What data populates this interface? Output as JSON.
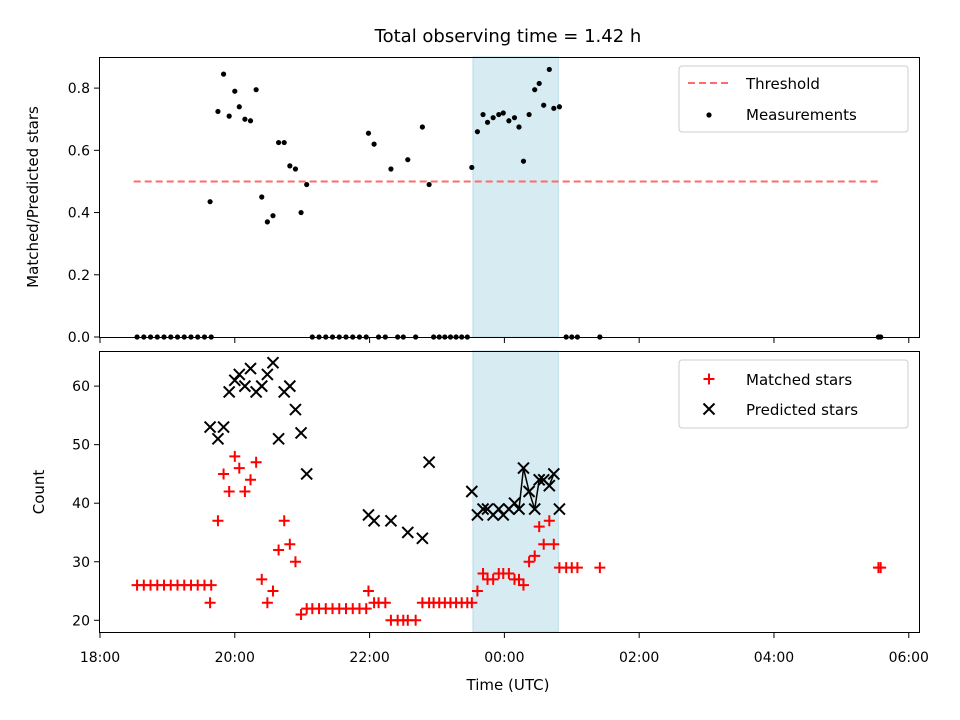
{
  "chart_data": {
    "title": "Total observing time = 1.42 h",
    "highlight_span": {
      "x": [
        "23:32",
        "00:48"
      ],
      "color": "#add8e6"
    },
    "panels": [
      {
        "type": "scatter",
        "ylabel": "Matched/Predicted stars",
        "xlabel": "",
        "xlim": [
          "18:00",
          "06:10"
        ],
        "ylim": [
          0,
          0.9
        ],
        "yticks": [
          0.0,
          0.2,
          0.4,
          0.6,
          0.8
        ],
        "ytick_labels": [
          "0.0",
          "0.2",
          "0.4",
          "0.6",
          "0.8"
        ],
        "legend_position": "top-right",
        "threshold": {
          "name": "Threshold",
          "value": 0.5,
          "x": [
            "18:30",
            "05:36"
          ],
          "color": "#ff6b6b",
          "style": "dashed"
        },
        "series": [
          {
            "name": "Measurements",
            "marker": "dot",
            "color": "#000000",
            "points": [
              [
                "18:33",
                0
              ],
              [
                "18:39",
                0
              ],
              [
                "18:45",
                0
              ],
              [
                "18:51",
                0
              ],
              [
                "18:57",
                0
              ],
              [
                "19:03",
                0
              ],
              [
                "19:09",
                0
              ],
              [
                "19:15",
                0
              ],
              [
                "19:21",
                0
              ],
              [
                "19:27",
                0
              ],
              [
                "19:33",
                0
              ],
              [
                "19:39",
                0
              ],
              [
                "19:38",
                0.435
              ],
              [
                "19:45",
                0.725
              ],
              [
                "19:50",
                0.845
              ],
              [
                "19:55",
                0.71
              ],
              [
                "20:00",
                0.79
              ],
              [
                "20:04",
                0.74
              ],
              [
                "20:09",
                0.7
              ],
              [
                "20:14",
                0.695
              ],
              [
                "20:19",
                0.795
              ],
              [
                "20:24",
                0.45
              ],
              [
                "20:29",
                0.37
              ],
              [
                "20:34",
                0.39
              ],
              [
                "20:39",
                0.625
              ],
              [
                "20:44",
                0.625
              ],
              [
                "20:49",
                0.55
              ],
              [
                "20:54",
                0.54
              ],
              [
                "20:59",
                0.4
              ],
              [
                "21:04",
                0.49
              ],
              [
                "21:09",
                0
              ],
              [
                "21:15",
                0
              ],
              [
                "21:21",
                0
              ],
              [
                "21:27",
                0
              ],
              [
                "21:33",
                0
              ],
              [
                "21:39",
                0
              ],
              [
                "21:45",
                0
              ],
              [
                "21:51",
                0
              ],
              [
                "21:57",
                0
              ],
              [
                "21:59",
                0.655
              ],
              [
                "22:04",
                0.62
              ],
              [
                "22:19",
                0.54
              ],
              [
                "22:34",
                0.57
              ],
              [
                "22:47",
                0.675
              ],
              [
                "22:53",
                0.49
              ],
              [
                "22:08",
                0
              ],
              [
                "22:14",
                0
              ],
              [
                "22:25",
                0
              ],
              [
                "22:30",
                0
              ],
              [
                "22:41",
                0
              ],
              [
                "22:57",
                0
              ],
              [
                "23:02",
                0
              ],
              [
                "23:07",
                0
              ],
              [
                "23:12",
                0
              ],
              [
                "23:17",
                0
              ],
              [
                "23:22",
                0
              ],
              [
                "23:27",
                0
              ],
              [
                "23:31",
                0.545
              ],
              [
                "23:36",
                0.66
              ],
              [
                "23:41",
                0.715
              ],
              [
                "23:45",
                0.69
              ],
              [
                "23:50",
                0.705
              ],
              [
                "23:55",
                0.715
              ],
              [
                "23:59",
                0.72
              ],
              [
                "00:04",
                0.695
              ],
              [
                "00:09",
                0.705
              ],
              [
                "00:13",
                0.675
              ],
              [
                "00:17",
                0.565
              ],
              [
                "00:22",
                0.715
              ],
              [
                "00:27",
                0.795
              ],
              [
                "00:31",
                0.815
              ],
              [
                "00:35",
                0.745
              ],
              [
                "00:40",
                0.86
              ],
              [
                "00:44",
                0.735
              ],
              [
                "00:49",
                0.74
              ],
              [
                "00:55",
                0
              ],
              [
                "01:00",
                0
              ],
              [
                "01:05",
                0
              ],
              [
                "01:25",
                0
              ],
              [
                "05:33",
                0
              ],
              [
                "05:35",
                0
              ]
            ]
          }
        ]
      },
      {
        "type": "scatter",
        "ylabel": "Count",
        "xlabel": "Time (UTC)",
        "xlim": [
          "18:00",
          "06:10"
        ],
        "ylim": [
          18,
          66
        ],
        "yticks": [
          20,
          30,
          40,
          50,
          60
        ],
        "ytick_labels": [
          "20",
          "30",
          "40",
          "50",
          "60"
        ],
        "xticks": [
          "18:00",
          "20:00",
          "22:00",
          "00:00",
          "02:00",
          "04:00",
          "06:00"
        ],
        "legend_position": "top-right",
        "series": [
          {
            "name": "Matched stars",
            "marker": "plus",
            "color": "#ff0000",
            "points": [
              [
                "18:33",
                26
              ],
              [
                "18:39",
                26
              ],
              [
                "18:45",
                26
              ],
              [
                "18:51",
                26
              ],
              [
                "18:57",
                26
              ],
              [
                "19:03",
                26
              ],
              [
                "19:09",
                26
              ],
              [
                "19:15",
                26
              ],
              [
                "19:21",
                26
              ],
              [
                "19:27",
                26
              ],
              [
                "19:33",
                26
              ],
              [
                "19:39",
                26
              ],
              [
                "19:38",
                23
              ],
              [
                "19:45",
                37
              ],
              [
                "19:50",
                45
              ],
              [
                "19:55",
                42
              ],
              [
                "20:00",
                48
              ],
              [
                "20:04",
                46
              ],
              [
                "20:09",
                42
              ],
              [
                "20:14",
                44
              ],
              [
                "20:19",
                47
              ],
              [
                "20:24",
                27
              ],
              [
                "20:29",
                23
              ],
              [
                "20:34",
                25
              ],
              [
                "20:39",
                32
              ],
              [
                "20:44",
                37
              ],
              [
                "20:49",
                33
              ],
              [
                "20:54",
                30
              ],
              [
                "20:59",
                21
              ],
              [
                "21:04",
                22
              ],
              [
                "21:09",
                22
              ],
              [
                "21:15",
                22
              ],
              [
                "21:21",
                22
              ],
              [
                "21:27",
                22
              ],
              [
                "21:33",
                22
              ],
              [
                "21:39",
                22
              ],
              [
                "21:45",
                22
              ],
              [
                "21:51",
                22
              ],
              [
                "21:57",
                22
              ],
              [
                "21:59",
                25
              ],
              [
                "22:04",
                23
              ],
              [
                "22:08",
                23
              ],
              [
                "22:14",
                23
              ],
              [
                "22:19",
                20
              ],
              [
                "22:25",
                20
              ],
              [
                "22:30",
                20
              ],
              [
                "22:34",
                20
              ],
              [
                "22:41",
                20
              ],
              [
                "22:47",
                23
              ],
              [
                "22:53",
                23
              ],
              [
                "22:57",
                23
              ],
              [
                "23:02",
                23
              ],
              [
                "23:07",
                23
              ],
              [
                "23:12",
                23
              ],
              [
                "23:17",
                23
              ],
              [
                "23:22",
                23
              ],
              [
                "23:27",
                23
              ],
              [
                "23:31",
                23
              ],
              [
                "23:36",
                25
              ],
              [
                "23:41",
                28
              ],
              [
                "23:45",
                27
              ],
              [
                "23:50",
                27
              ],
              [
                "23:55",
                28
              ],
              [
                "23:59",
                28
              ],
              [
                "00:04",
                28
              ],
              [
                "00:09",
                27
              ],
              [
                "00:13",
                27
              ],
              [
                "00:17",
                26
              ],
              [
                "00:22",
                30
              ],
              [
                "00:27",
                31
              ],
              [
                "00:31",
                36
              ],
              [
                "00:35",
                33
              ],
              [
                "00:40",
                37
              ],
              [
                "00:44",
                33
              ],
              [
                "00:49",
                29
              ],
              [
                "00:55",
                29
              ],
              [
                "01:00",
                29
              ],
              [
                "01:05",
                29
              ],
              [
                "01:25",
                29
              ],
              [
                "05:33",
                29
              ],
              [
                "05:35",
                29
              ]
            ]
          },
          {
            "name": "Predicted stars",
            "marker": "x",
            "color": "#000000",
            "points": [
              [
                "19:38",
                53
              ],
              [
                "19:45",
                51
              ],
              [
                "19:50",
                53
              ],
              [
                "19:55",
                59
              ],
              [
                "20:00",
                61
              ],
              [
                "20:04",
                62
              ],
              [
                "20:09",
                60
              ],
              [
                "20:14",
                63
              ],
              [
                "20:19",
                59
              ],
              [
                "20:24",
                60
              ],
              [
                "20:29",
                62
              ],
              [
                "20:34",
                64
              ],
              [
                "20:39",
                51
              ],
              [
                "20:44",
                59
              ],
              [
                "20:49",
                60
              ],
              [
                "20:54",
                56
              ],
              [
                "20:59",
                52
              ],
              [
                "21:04",
                45
              ],
              [
                "21:59",
                38
              ],
              [
                "22:04",
                37
              ],
              [
                "22:19",
                37
              ],
              [
                "22:34",
                35
              ],
              [
                "22:47",
                34
              ],
              [
                "22:53",
                47
              ],
              [
                "23:31",
                42
              ],
              [
                "23:36",
                38
              ],
              [
                "23:41",
                39
              ],
              [
                "23:45",
                39
              ],
              [
                "23:50",
                38
              ],
              [
                "23:55",
                39
              ],
              [
                "23:59",
                38
              ],
              [
                "00:04",
                39
              ],
              [
                "00:09",
                40
              ],
              [
                "00:13",
                39
              ],
              [
                "00:17",
                46
              ],
              [
                "00:22",
                42
              ],
              [
                "00:27",
                39
              ],
              [
                "00:31",
                44
              ],
              [
                "00:35",
                44
              ],
              [
                "00:40",
                43
              ],
              [
                "00:44",
                45
              ],
              [
                "00:49",
                39
              ]
            ]
          }
        ]
      }
    ]
  }
}
